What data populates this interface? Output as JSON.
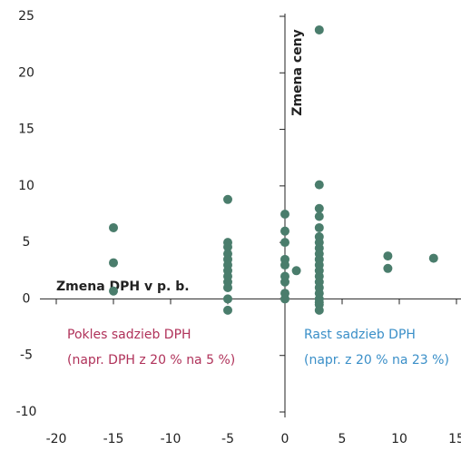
{
  "chart_data": {
    "type": "scatter",
    "y_axis_label": "Zmena ceny",
    "x_axis_label": "Zmena DPH v p. b.",
    "annotations": [
      {
        "text": "Pokles sadzieb DPH",
        "color": "#b0325a"
      },
      {
        "text": "(napr. DPH z 20 % na 5 %)",
        "color": "#b0325a"
      },
      {
        "text": "Rast sadzieb DPH",
        "color": "#3a8fc8"
      },
      {
        "text": "(napr. z 20 % na 23 %)",
        "color": "#3a8fc8"
      }
    ],
    "color": "#4a7d6c",
    "x": [
      -15,
      -15,
      -15,
      -5,
      -5,
      -5,
      -5,
      -5,
      -5,
      -5,
      -5,
      -5,
      -5,
      -5,
      -5,
      0,
      0,
      0,
      0,
      0,
      0,
      0,
      0,
      0,
      1,
      3,
      3,
      3,
      3,
      3,
      3,
      3,
      3,
      3,
      3,
      3,
      3,
      3,
      3,
      3,
      3,
      3,
      3,
      3,
      3,
      9,
      9,
      13
    ],
    "y": [
      6.3,
      3.2,
      0.7,
      8.8,
      5.0,
      4.6,
      4.0,
      3.5,
      3.0,
      2.5,
      2.0,
      1.5,
      0.0,
      -1.0,
      1.0,
      7.5,
      6.0,
      5.0,
      3.5,
      3.0,
      2.0,
      1.5,
      0.5,
      0.0,
      2.5,
      23.8,
      10.1,
      8.0,
      7.3,
      6.3,
      5.5,
      5.0,
      4.5,
      4.0,
      3.5,
      3.0,
      2.5,
      2.0,
      1.5,
      1.0,
      0.5,
      0.0,
      -0.5,
      -1.0,
      -0.3,
      3.8,
      2.7,
      3.6
    ],
    "xlim": [
      -20,
      15
    ],
    "ylim": [
      -10,
      25
    ],
    "xticks": [
      -20,
      -15,
      -10,
      -5,
      0,
      5,
      10,
      15
    ],
    "yticks": [
      -10,
      -5,
      0,
      5,
      10,
      15,
      20,
      25
    ]
  }
}
